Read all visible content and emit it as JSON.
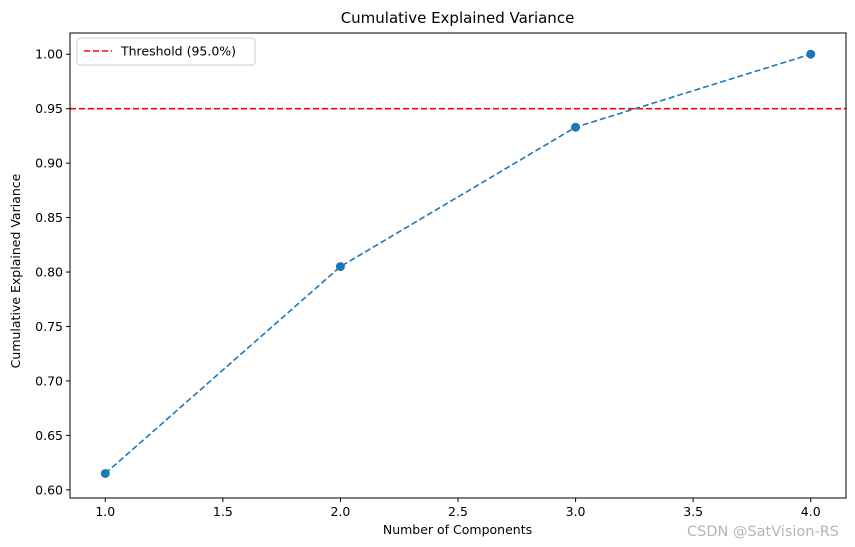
{
  "chart_data": {
    "type": "line",
    "title": "Cumulative Explained Variance",
    "xlabel": "Number of Components",
    "ylabel": "Cumulative Explained Variance",
    "xlim": [
      0.85,
      4.15
    ],
    "ylim": [
      0.5925,
      1.0195
    ],
    "xticks": [
      1.0,
      1.5,
      2.0,
      2.5,
      3.0,
      3.5,
      4.0
    ],
    "xtick_labels": [
      "1.0",
      "1.5",
      "2.0",
      "2.5",
      "3.0",
      "3.5",
      "4.0"
    ],
    "yticks": [
      0.6,
      0.65,
      0.7,
      0.75,
      0.8,
      0.85,
      0.9,
      0.95,
      1.0
    ],
    "ytick_labels": [
      "0.60",
      "0.65",
      "0.70",
      "0.75",
      "0.80",
      "0.85",
      "0.90",
      "0.95",
      "1.00"
    ],
    "grid": false,
    "legend_location": "top-left",
    "series": [
      {
        "name": "Cumulative Explained Variance",
        "x": [
          1,
          2,
          3,
          4
        ],
        "values": [
          0.615,
          0.805,
          0.933,
          1.0
        ],
        "color": "#1f77b4",
        "line_style": "dashed",
        "marker": "circle"
      }
    ],
    "threshold": {
      "label": "Threshold (95.0%)",
      "value": 0.95,
      "color": "#ff0000",
      "line_style": "dashed"
    }
  },
  "watermark": "CSDN @SatVision-RS"
}
